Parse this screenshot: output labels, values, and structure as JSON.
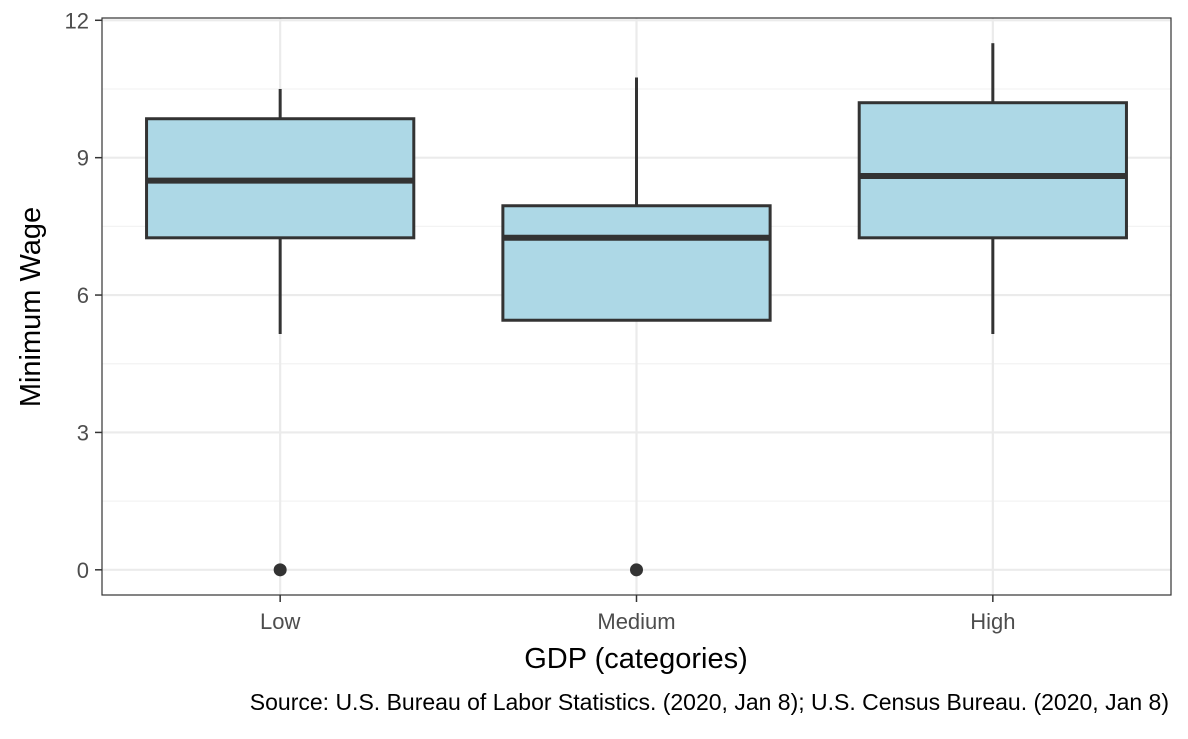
{
  "chart_data": {
    "type": "boxplot",
    "title": "",
    "xlabel": "GDP (categories)",
    "ylabel": "Minimum Wage",
    "caption": "Source: U.S. Bureau of Labor Statistics. (2020, Jan 8); U.S. Census Bureau. (2020, Jan 8)",
    "categories": [
      "Low",
      "Medium",
      "High"
    ],
    "ylim": [
      -0.55,
      12.05
    ],
    "y_ticks": [
      0,
      3,
      6,
      9,
      12
    ],
    "y_minor_ticks": [
      1.5,
      4.5,
      7.5,
      10.5
    ],
    "grid": true,
    "legend": "none",
    "boxes": [
      {
        "category": "Low",
        "whisker_low": 5.15,
        "q1": 7.25,
        "median": 8.5,
        "q3": 9.85,
        "whisker_high": 10.5,
        "outliers": [
          0
        ]
      },
      {
        "category": "Medium",
        "whisker_low": 5.45,
        "q1": 5.45,
        "median": 7.25,
        "q3": 7.95,
        "whisker_high": 10.75,
        "outliers": [
          0
        ]
      },
      {
        "category": "High",
        "whisker_low": 5.15,
        "q1": 7.25,
        "median": 8.6,
        "q3": 10.2,
        "whisker_high": 11.5,
        "outliers": []
      }
    ],
    "colors": {
      "box_fill": "#add8e6",
      "box_stroke": "#333333",
      "panel_border": "#333333",
      "grid_major": "#ebebeb",
      "grid_minor": "#f3f3f3",
      "outlier": "#333333"
    }
  }
}
